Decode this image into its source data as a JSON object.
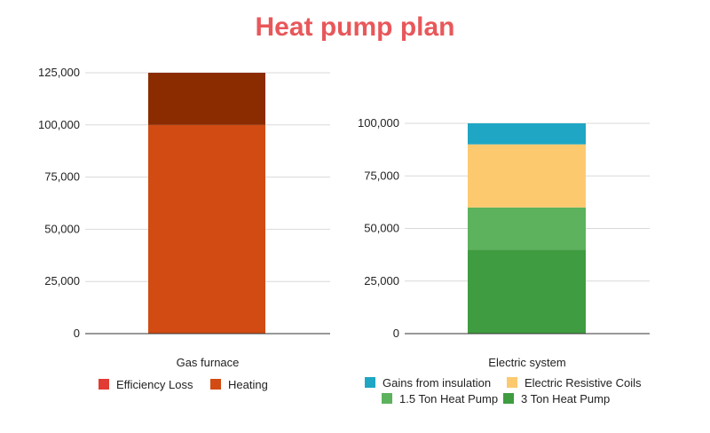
{
  "title": "Heat pump plan",
  "colors": {
    "title": "#e8575a",
    "gridline": "#d9d9d9",
    "axis": "#333333"
  },
  "chart_data": [
    {
      "type": "bar",
      "stacked": true,
      "title": "",
      "xlabel": "",
      "ylabel": "",
      "categories": [
        "Gas furnace"
      ],
      "ylim": [
        0,
        125000
      ],
      "yticks": [
        0,
        25000,
        50000,
        75000,
        100000,
        125000
      ],
      "ytick_labels": [
        "0",
        "25,000",
        "50,000",
        "75,000",
        "100,000",
        "125,000"
      ],
      "grid": true,
      "legend_placement": "bottom",
      "series": [
        {
          "name": "Efficiency Loss",
          "values": [
            25000
          ],
          "color": "#e23b33",
          "bar_color": "#8a2b00"
        },
        {
          "name": "Heating",
          "values": [
            100000
          ],
          "color": "#d14b13",
          "bar_color": "#d14b13"
        }
      ]
    },
    {
      "type": "bar",
      "stacked": true,
      "title": "",
      "xlabel": "",
      "ylabel": "",
      "categories": [
        "Electric system"
      ],
      "ylim": [
        0,
        100000
      ],
      "yticks": [
        0,
        25000,
        50000,
        75000,
        100000
      ],
      "ytick_labels": [
        "0",
        "25,000",
        "50,000",
        "75,000",
        "100,000"
      ],
      "grid": true,
      "legend_placement": "bottom",
      "series": [
        {
          "name": "Gains from insulation",
          "values": [
            10000
          ],
          "color": "#1fa6c4"
        },
        {
          "name": "Electric Resistive Coils",
          "values": [
            30000
          ],
          "color": "#fdc96f"
        },
        {
          "name": "1.5 Ton Heat Pump",
          "values": [
            20000
          ],
          "color": "#5cb25d"
        },
        {
          "name": "3 Ton Heat Pump",
          "values": [
            40000
          ],
          "color": "#3f9c40"
        }
      ]
    }
  ]
}
